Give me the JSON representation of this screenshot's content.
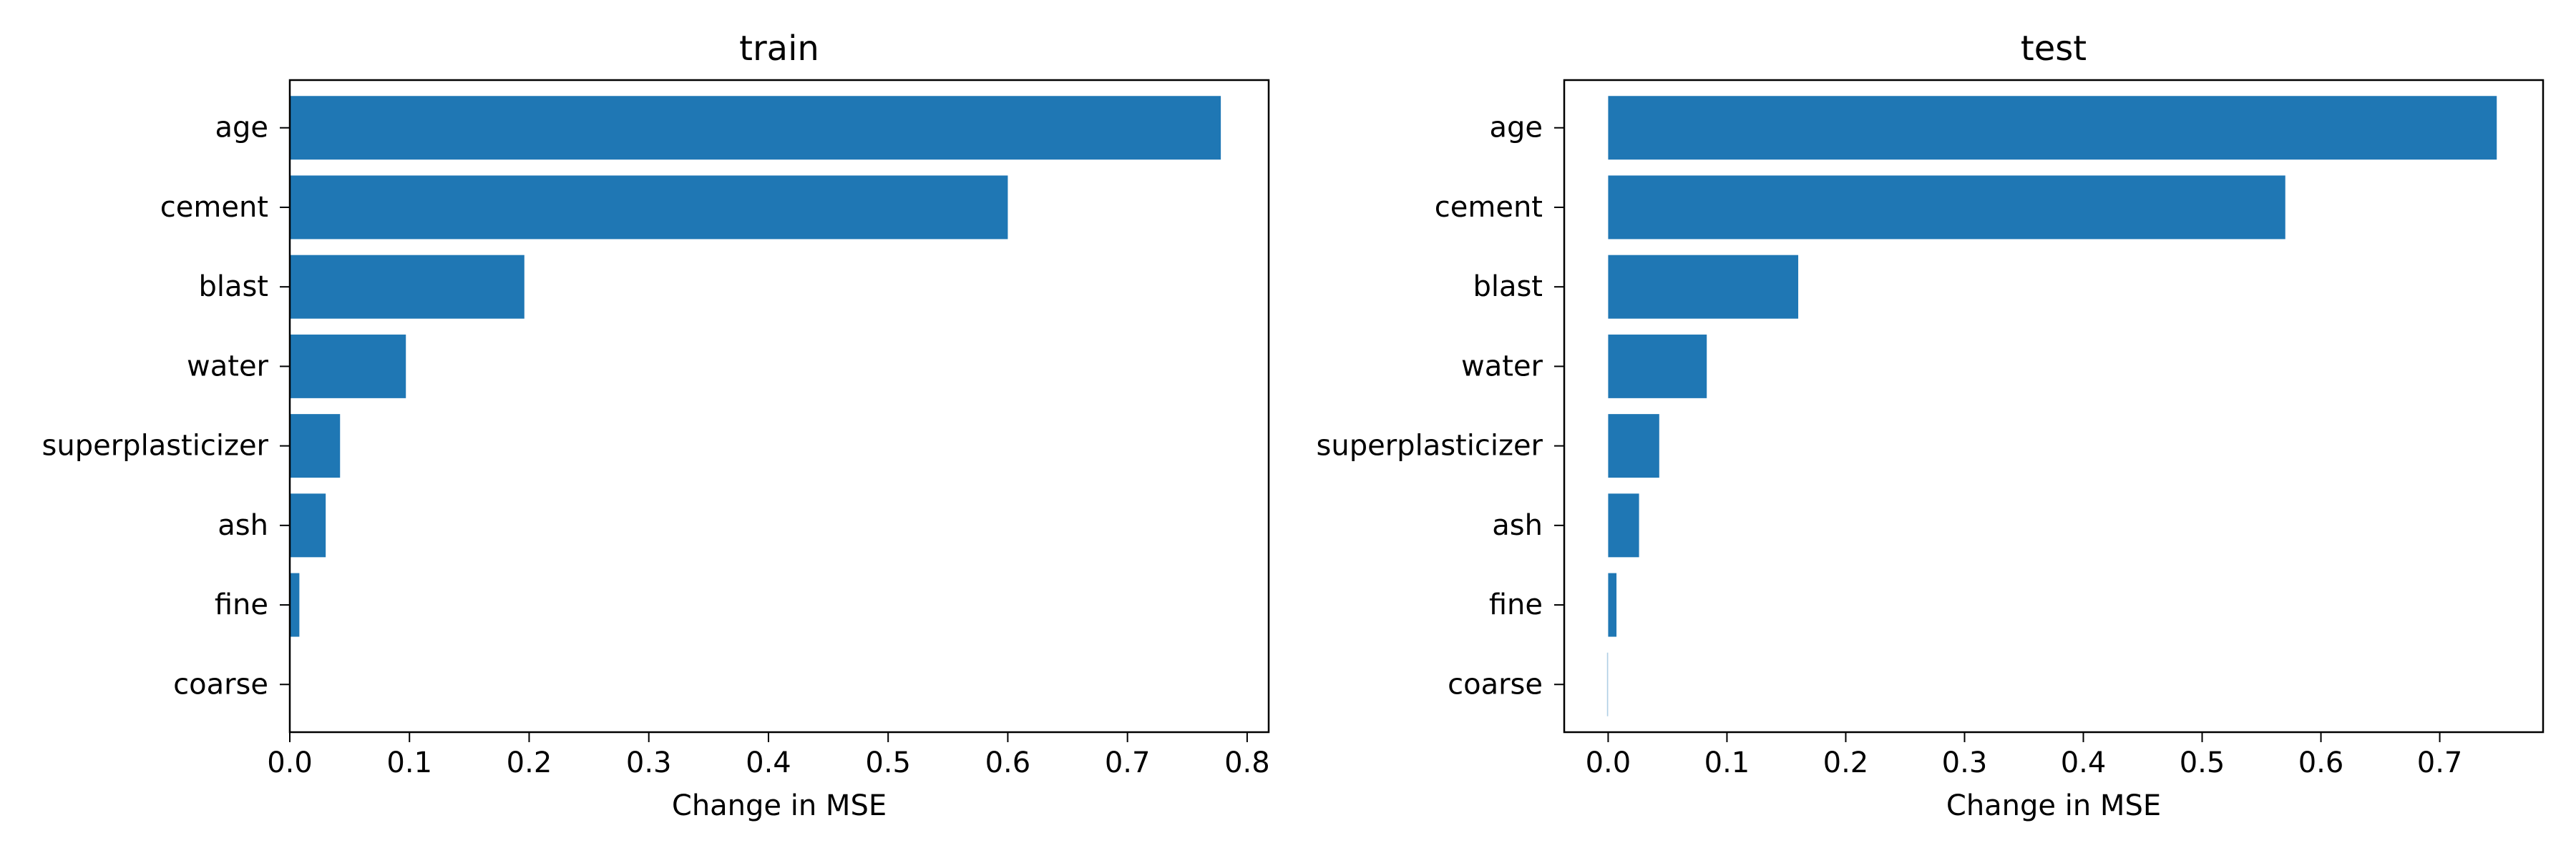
{
  "chart_data": [
    {
      "type": "bar",
      "orientation": "horizontal",
      "title": "train",
      "xlabel": "Change in MSE",
      "ylabel": "",
      "categories": [
        "age",
        "cement",
        "blast",
        "water",
        "superplasticizer",
        "ash",
        "fine",
        "coarse"
      ],
      "values": [
        0.778,
        0.6,
        0.196,
        0.097,
        0.042,
        0.03,
        0.008,
        0.0
      ],
      "xlim": [
        0.0,
        0.818
      ],
      "xticks": [
        0.0,
        0.1,
        0.2,
        0.3,
        0.4,
        0.5,
        0.6,
        0.7,
        0.8
      ],
      "xtick_labels": [
        "0.0",
        "0.1",
        "0.2",
        "0.3",
        "0.4",
        "0.5",
        "0.6",
        "0.7",
        "0.8"
      ],
      "bar_color": "#1f77b4",
      "grid": false
    },
    {
      "type": "bar",
      "orientation": "horizontal",
      "title": "test",
      "xlabel": "Change in MSE",
      "ylabel": "",
      "categories": [
        "age",
        "cement",
        "blast",
        "water",
        "superplasticizer",
        "ash",
        "fine",
        "coarse"
      ],
      "values": [
        0.748,
        0.57,
        0.16,
        0.083,
        0.043,
        0.026,
        0.007,
        -0.001
      ],
      "xlim": [
        -0.037,
        0.787
      ],
      "xticks": [
        0.0,
        0.1,
        0.2,
        0.3,
        0.4,
        0.5,
        0.6,
        0.7
      ],
      "xtick_labels": [
        "0.0",
        "0.1",
        "0.2",
        "0.3",
        "0.4",
        "0.5",
        "0.6",
        "0.7"
      ],
      "bar_color": "#1f77b4",
      "grid": false
    }
  ]
}
